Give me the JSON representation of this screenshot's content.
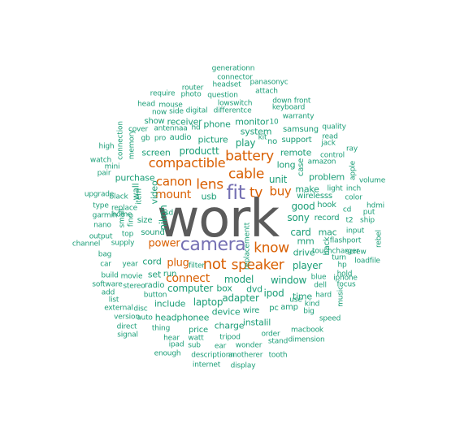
{
  "colors": {
    "background": "#ffffff",
    "tier_xl": "#5b5b5b",
    "tier_l": "#7570b3",
    "tier_m": "#d95f02",
    "tier_s": "#1b9e77"
  },
  "words": [
    {
      "text": "work",
      "tier": "xl"
    },
    {
      "text": "camera",
      "tier": "l"
    },
    {
      "text": "fit",
      "tier": "l"
    },
    {
      "text": "not",
      "tier": "m"
    },
    {
      "text": "lens",
      "tier": "m"
    },
    {
      "text": "battery",
      "tier": "m"
    },
    {
      "text": "cable",
      "tier": "m"
    },
    {
      "text": "speaker",
      "tier": "m"
    },
    {
      "text": "know",
      "tier": "m"
    },
    {
      "text": "tv",
      "tier": "m"
    },
    {
      "text": "compactible",
      "tier": "m"
    },
    {
      "text": "canon",
      "tier": "m"
    },
    {
      "text": "buy",
      "tier": "m"
    },
    {
      "text": "mount",
      "tier": "m"
    },
    {
      "text": "connect",
      "tier": "m"
    },
    {
      "text": "power",
      "tier": "m"
    },
    {
      "text": "plug",
      "tier": "m"
    },
    {
      "text": "usb",
      "tier": "s"
    },
    {
      "text": "productt",
      "tier": "s"
    },
    {
      "text": "unit",
      "tier": "s"
    },
    {
      "text": "nikon",
      "tier": "s"
    },
    {
      "text": "model",
      "tier": "s"
    },
    {
      "text": "computer",
      "tier": "s"
    },
    {
      "text": "adapter",
      "tier": "s"
    },
    {
      "text": "system",
      "tier": "s"
    },
    {
      "text": "play",
      "tier": "s"
    },
    {
      "text": "card",
      "tier": "s"
    },
    {
      "text": "sony",
      "tier": "s"
    },
    {
      "text": "good",
      "tier": "s"
    },
    {
      "text": "player",
      "tier": "s"
    },
    {
      "text": "window",
      "tier": "s"
    },
    {
      "text": "drive",
      "tier": "s"
    },
    {
      "text": "laptop",
      "tier": "s"
    },
    {
      "text": "ipod",
      "tier": "s"
    },
    {
      "text": "picture",
      "tier": "s"
    },
    {
      "text": "screen",
      "tier": "s"
    },
    {
      "text": "monitor",
      "tier": "s"
    },
    {
      "text": "phone",
      "tier": "s"
    },
    {
      "text": "headphonee",
      "tier": "s"
    },
    {
      "text": "include",
      "tier": "s"
    },
    {
      "text": "video",
      "tier": "s"
    },
    {
      "text": "remote",
      "tier": "s"
    },
    {
      "text": "mm",
      "tier": "s"
    },
    {
      "text": "instalil",
      "tier": "s"
    },
    {
      "text": "time",
      "tier": "s"
    },
    {
      "text": "set",
      "tier": "s"
    },
    {
      "text": "size",
      "tier": "s"
    },
    {
      "text": "wall",
      "tier": "s"
    },
    {
      "text": "purchase",
      "tier": "s"
    },
    {
      "text": "cord",
      "tier": "s"
    },
    {
      "text": "long",
      "tier": "s"
    },
    {
      "text": "make",
      "tier": "s"
    },
    {
      "text": "case",
      "tier": "s"
    },
    {
      "text": "mac",
      "tier": "s"
    },
    {
      "text": "dvd",
      "tier": "s"
    },
    {
      "text": "box",
      "tier": "s"
    },
    {
      "text": "charge",
      "tier": "s"
    },
    {
      "text": "wire",
      "tier": "s"
    },
    {
      "text": "run",
      "tier": "s"
    },
    {
      "text": "device",
      "tier": "s"
    },
    {
      "text": "audio",
      "tier": "s"
    },
    {
      "text": "receiver",
      "tier": "s"
    },
    {
      "text": "radio",
      "tier": "s"
    },
    {
      "text": "sound",
      "tier": "s"
    },
    {
      "text": "problem",
      "tier": "s"
    },
    {
      "text": "record",
      "tier": "s"
    },
    {
      "text": "back",
      "tier": "s"
    },
    {
      "text": "pc",
      "tier": "s"
    },
    {
      "text": "amp",
      "tier": "s"
    },
    {
      "text": "price",
      "tier": "s"
    },
    {
      "text": "hook",
      "tier": "s"
    },
    {
      "text": "no",
      "tier": "s"
    },
    {
      "text": "samsung",
      "tier": "s"
    },
    {
      "text": "support",
      "tier": "s"
    },
    {
      "text": "wirelesss",
      "tier": "s"
    },
    {
      "text": "show",
      "tier": "s"
    },
    {
      "text": "hd",
      "tier": "s"
    },
    {
      "text": "generationn",
      "tier": "s"
    },
    {
      "text": "connector",
      "tier": "s"
    },
    {
      "text": "headset",
      "tier": "s"
    },
    {
      "text": "panasonyc",
      "tier": "s"
    },
    {
      "text": "router",
      "tier": "s"
    },
    {
      "text": "attach",
      "tier": "s"
    },
    {
      "text": "require",
      "tier": "s"
    },
    {
      "text": "photo",
      "tier": "s"
    },
    {
      "text": "question",
      "tier": "s"
    },
    {
      "text": "down",
      "tier": "s"
    },
    {
      "text": "front",
      "tier": "s"
    },
    {
      "text": "head",
      "tier": "s"
    },
    {
      "text": "mouse",
      "tier": "s"
    },
    {
      "text": "lowswitch",
      "tier": "s"
    },
    {
      "text": "keyboard",
      "tier": "s"
    },
    {
      "text": "now",
      "tier": "s"
    },
    {
      "text": "side",
      "tier": "s"
    },
    {
      "text": "digital",
      "tier": "s"
    },
    {
      "text": "differentce",
      "tier": "s"
    },
    {
      "text": "warranty",
      "tier": "s"
    },
    {
      "text": "10",
      "tier": "s"
    },
    {
      "text": "cover",
      "tier": "s"
    },
    {
      "text": "antennaa",
      "tier": "s"
    },
    {
      "text": "quality",
      "tier": "s"
    },
    {
      "text": "connection",
      "tier": "s"
    },
    {
      "text": "gb",
      "tier": "s"
    },
    {
      "text": "pro",
      "tier": "s"
    },
    {
      "text": "read",
      "tier": "s"
    },
    {
      "text": "kit",
      "tier": "s"
    },
    {
      "text": "jack",
      "tier": "s"
    },
    {
      "text": "high",
      "tier": "s"
    },
    {
      "text": "memory",
      "tier": "s"
    },
    {
      "text": "ray",
      "tier": "s"
    },
    {
      "text": "watch",
      "tier": "s"
    },
    {
      "text": "control",
      "tier": "s"
    },
    {
      "text": "mini",
      "tier": "s"
    },
    {
      "text": "amazon",
      "tier": "s"
    },
    {
      "text": "apple",
      "tier": "s"
    },
    {
      "text": "pair",
      "tier": "s"
    },
    {
      "text": "volume",
      "tier": "s"
    },
    {
      "text": "upgrade",
      "tier": "s"
    },
    {
      "text": "black",
      "tier": "s"
    },
    {
      "text": "item",
      "tier": "s"
    },
    {
      "text": "light",
      "tier": "s"
    },
    {
      "text": "inch",
      "tier": "s"
    },
    {
      "text": "color",
      "tier": "s"
    },
    {
      "text": "type",
      "tier": "s"
    },
    {
      "text": "replace",
      "tier": "s"
    },
    {
      "text": "hdmi",
      "tier": "s"
    },
    {
      "text": "garmin",
      "tier": "s"
    },
    {
      "text": "home",
      "tier": "s"
    },
    {
      "text": "sd",
      "tier": "s"
    },
    {
      "text": "cd",
      "tier": "s"
    },
    {
      "text": "put",
      "tier": "s"
    },
    {
      "text": "nano",
      "tier": "s"
    },
    {
      "text": "small",
      "tier": "s"
    },
    {
      "text": "find",
      "tier": "s"
    },
    {
      "text": "t2",
      "tier": "s"
    },
    {
      "text": "ship",
      "tier": "s"
    },
    {
      "text": "top",
      "tier": "s"
    },
    {
      "text": "input",
      "tier": "s"
    },
    {
      "text": "output",
      "tier": "s"
    },
    {
      "text": "rebel",
      "tier": "s"
    },
    {
      "text": "supply",
      "tier": "s"
    },
    {
      "text": "flashport",
      "tier": "s"
    },
    {
      "text": "channel",
      "tier": "s"
    },
    {
      "text": "screw",
      "tier": "s"
    },
    {
      "text": "bag",
      "tier": "s"
    },
    {
      "text": "touchcharger",
      "tier": "s"
    },
    {
      "text": "turn",
      "tier": "s"
    },
    {
      "text": "car",
      "tier": "s"
    },
    {
      "text": "year",
      "tier": "s"
    },
    {
      "text": "filter",
      "tier": "s"
    },
    {
      "text": "hp",
      "tier": "s"
    },
    {
      "text": "loadfile",
      "tier": "s"
    },
    {
      "text": "build",
      "tier": "s"
    },
    {
      "text": "movie",
      "tier": "s"
    },
    {
      "text": "hold",
      "tier": "s"
    },
    {
      "text": "software",
      "tier": "s"
    },
    {
      "text": "stereo",
      "tier": "s"
    },
    {
      "text": "blue",
      "tier": "s"
    },
    {
      "text": "dell",
      "tier": "s"
    },
    {
      "text": "iphone",
      "tier": "s"
    },
    {
      "text": "add",
      "tier": "s"
    },
    {
      "text": "button",
      "tier": "s"
    },
    {
      "text": "hard",
      "tier": "s"
    },
    {
      "text": "focus",
      "tier": "s"
    },
    {
      "text": "list",
      "tier": "s"
    },
    {
      "text": "replacementt",
      "tier": "s"
    },
    {
      "text": "use",
      "tier": "s"
    },
    {
      "text": "music",
      "tier": "s"
    },
    {
      "text": "external",
      "tier": "s"
    },
    {
      "text": "disc",
      "tier": "s"
    },
    {
      "text": "kind",
      "tier": "s"
    },
    {
      "text": "version",
      "tier": "s"
    },
    {
      "text": "auto",
      "tier": "s"
    },
    {
      "text": "big",
      "tier": "s"
    },
    {
      "text": "direct",
      "tier": "s"
    },
    {
      "text": "speed",
      "tier": "s"
    },
    {
      "text": "signal",
      "tier": "s"
    },
    {
      "text": "thing",
      "tier": "s"
    },
    {
      "text": "macbook",
      "tier": "s"
    },
    {
      "text": "hear",
      "tier": "s"
    },
    {
      "text": "watt",
      "tier": "s"
    },
    {
      "text": "tripod",
      "tier": "s"
    },
    {
      "text": "order",
      "tier": "s"
    },
    {
      "text": "dimension",
      "tier": "s"
    },
    {
      "text": "ipad",
      "tier": "s"
    },
    {
      "text": "sub",
      "tier": "s"
    },
    {
      "text": "ear",
      "tier": "s"
    },
    {
      "text": "wonder",
      "tier": "s"
    },
    {
      "text": "stand",
      "tier": "s"
    },
    {
      "text": "enough",
      "tier": "s"
    },
    {
      "text": "descriptionn",
      "tier": "s"
    },
    {
      "text": "anotherer",
      "tier": "s"
    },
    {
      "text": "tooth",
      "tier": "s"
    },
    {
      "text": "internet",
      "tier": "s"
    },
    {
      "text": "display",
      "tier": "s"
    },
    {
      "text": "recommentd",
      "tier": "s"
    }
  ]
}
